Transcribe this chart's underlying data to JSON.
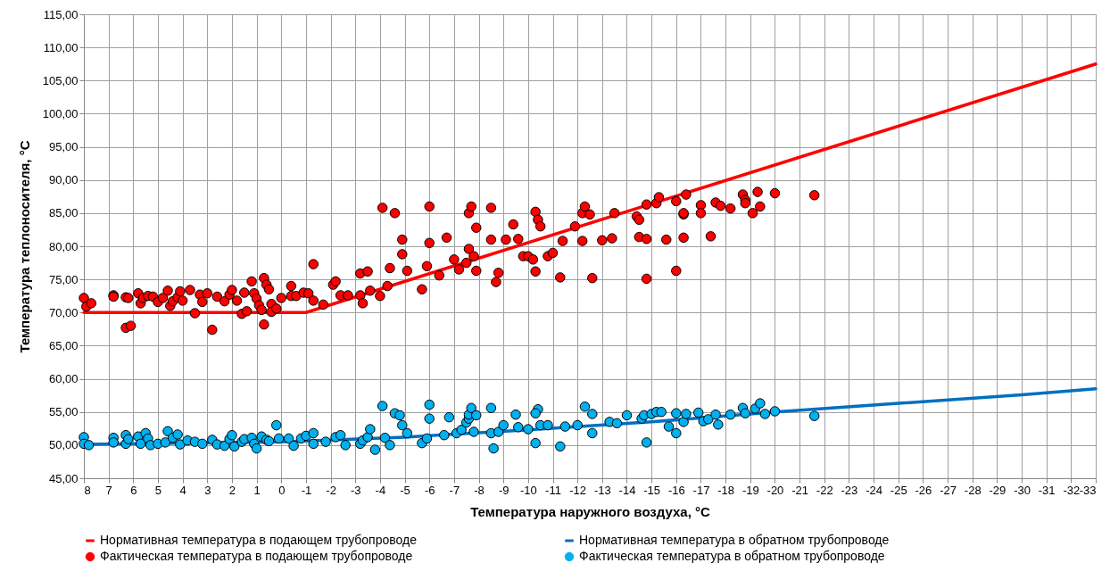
{
  "chart_data": {
    "type": "scatter",
    "xlabel": "Температура наружного воздуха,  °C",
    "ylabel": "Температура теплоносителя,  °C",
    "xlim": [
      8,
      -33
    ],
    "xticks": [
      8,
      7,
      6,
      5,
      4,
      3,
      2,
      1,
      0,
      -1,
      -2,
      -3,
      -4,
      -5,
      -6,
      -7,
      -8,
      -9,
      -10,
      -11,
      -12,
      -13,
      -14,
      -15,
      -16,
      -17,
      -18,
      -19,
      -20,
      -21,
      -22,
      -23,
      -24,
      -25,
      -26,
      -27,
      -28,
      -29,
      -30,
      -31,
      -32,
      -33
    ],
    "ylim": [
      45,
      115
    ],
    "yticks": [
      {
        "value": 45,
        "label": "45,00"
      },
      {
        "value": 50,
        "label": "50,00"
      },
      {
        "value": 55,
        "label": "55,00"
      },
      {
        "value": 60,
        "label": "60,00"
      },
      {
        "value": 65,
        "label": "65,00"
      },
      {
        "value": 70,
        "label": "70,00"
      },
      {
        "value": 75,
        "label": "75,00"
      },
      {
        "value": 80,
        "label": "80,00"
      },
      {
        "value": 85,
        "label": "85,00"
      },
      {
        "value": 90,
        "label": "90,00"
      },
      {
        "value": 95,
        "label": "95,00"
      },
      {
        "value": 100,
        "label": "100,00"
      },
      {
        "value": 105,
        "label": "105,00"
      },
      {
        "value": 110,
        "label": "110,00"
      },
      {
        "value": 115,
        "label": "115,00"
      }
    ],
    "grid": true,
    "legend": "bottom",
    "series": [
      {
        "name": "Нормативная температура в подающем трубопроводе",
        "type": "line",
        "color": "#ff0000",
        "x": [
          8,
          -1,
          -33
        ],
        "values": [
          70,
          70,
          107.5
        ]
      },
      {
        "name": "Нормативная температура в обратном трубопроводе",
        "type": "line",
        "color": "#0070c0",
        "x": [
          8,
          0,
          -5,
          -10,
          -15,
          -20,
          -25,
          -30,
          -33
        ],
        "values": [
          50.1,
          50.5,
          51.2,
          52.3,
          53.5,
          55,
          56.3,
          57.6,
          58.5
        ]
      },
      {
        "name": "Фактическая температура в подающем трубопроводе",
        "marker": "circle",
        "color": "#ff0000",
        "x": [
          8,
          7.9,
          7.7,
          6.8,
          6.8,
          6.3,
          6.3,
          6.1,
          6.2,
          5.8,
          5.7,
          5.6,
          5.4,
          5.2,
          5,
          4.8,
          4.6,
          4.5,
          4.4,
          4.2,
          4.1,
          4,
          3.7,
          3.5,
          3.3,
          3.2,
          3,
          2.8,
          2.6,
          2.3,
          2.1,
          2,
          1.8,
          1.6,
          1.4,
          1.5,
          1.2,
          1.1,
          1,
          0.9,
          0.8,
          0.7,
          0.7,
          0.6,
          0.5,
          0.4,
          0.4,
          0.2,
          0,
          -0.4,
          -0.4,
          -0.6,
          -0.9,
          -1.1,
          -1.3,
          -1.3,
          -1.7,
          -2.1,
          -2.2,
          -2.4,
          -2.7,
          -3.2,
          -3.3,
          -3.2,
          -3.5,
          -3.6,
          -4,
          -4.1,
          -4.3,
          -4.4,
          -4.6,
          -4.9,
          -4.9,
          -5.1,
          -5.7,
          -5.9,
          -6,
          -6,
          -6.4,
          -6.7,
          -7,
          -7.2,
          -7.5,
          -7.6,
          -7.7,
          -7.9,
          -7.6,
          -7.8,
          -7.9,
          -8.5,
          -8.5,
          -8.7,
          -8.8,
          -9.1,
          -9.4,
          -9.6,
          -9.8,
          -10,
          -10.2,
          -10.3,
          -10.3,
          -10.4,
          -10.5,
          -10.8,
          -11,
          -11.3,
          -11.4,
          -11.9,
          -12.2,
          -12.3,
          -12.2,
          -12.5,
          -12.6,
          -13,
          -13.4,
          -13.5,
          -14.4,
          -14.5,
          -14.5,
          -14.8,
          -14.8,
          -14.8,
          -15.2,
          -15.3,
          -15.6,
          -16,
          -16,
          -16.3,
          -16.3,
          -16.3,
          -16.4,
          -17,
          -17,
          -17.4,
          -17.6,
          -17.8,
          -18.2,
          -18.7,
          -18.8,
          -18.8,
          -19.1,
          -19.3,
          -19.4,
          -20,
          -21.6
        ],
        "values": [
          72.2,
          70.9,
          71.4,
          72.6,
          72.4,
          72.3,
          67.7,
          68,
          72.2,
          72.9,
          71.4,
          72.2,
          72.5,
          72.4,
          71.6,
          72.2,
          73.3,
          71,
          71.7,
          72.3,
          73.2,
          71.8,
          73.4,
          69.9,
          72.7,
          71.6,
          72.9,
          67.4,
          72.4,
          71.7,
          72.7,
          73.4,
          71.8,
          69.8,
          70.2,
          73,
          74.7,
          72.9,
          72.1,
          71.1,
          70.4,
          68.2,
          75.2,
          74.2,
          73.5,
          71.3,
          70.1,
          70.6,
          72.2,
          72.5,
          74,
          72.5,
          73,
          72.9,
          71.8,
          77.3,
          71.2,
          74.2,
          74.7,
          72.6,
          72.6,
          72.6,
          71.4,
          75.9,
          76.2,
          73.3,
          72.5,
          85.8,
          74,
          76.7,
          85,
          81,
          78.8,
          76.3,
          73.5,
          77,
          86,
          80.5,
          75.6,
          81.3,
          78,
          76.5,
          77.5,
          85,
          86,
          82.8,
          79.6,
          78.5,
          76.3,
          85.8,
          81,
          74.6,
          76,
          81,
          83.3,
          81.1,
          78.5,
          78.5,
          78,
          76.2,
          85.2,
          84,
          83,
          78.5,
          79,
          75.3,
          80.8,
          83,
          85,
          86,
          80.8,
          84.8,
          75.2,
          80.9,
          81.2,
          85,
          84.5,
          84,
          81.4,
          75.1,
          86.3,
          81.1,
          86.5,
          87.4,
          81,
          76.3,
          86.8,
          84.8,
          85,
          81.3,
          87.8,
          86.2,
          85,
          81.5,
          86.6,
          86.1,
          85.7,
          87.8,
          87,
          86.5,
          85,
          88.2,
          86,
          88,
          87.7
        ]
      },
      {
        "name": "Фактическая температура в обратном трубопроводе",
        "marker": "circle",
        "color": "#00b0f0",
        "x": [
          8,
          8,
          7.8,
          6.8,
          6.8,
          6.3,
          6.3,
          6.2,
          5.8,
          5.7,
          5.5,
          5.4,
          5.3,
          5,
          4.7,
          4.6,
          4.4,
          4.2,
          4.1,
          3.8,
          3.5,
          3.2,
          2.8,
          2.6,
          2.3,
          2.1,
          2,
          1.9,
          1.6,
          1.5,
          1.2,
          1.1,
          1,
          0.8,
          0.6,
          0.5,
          0.2,
          0.1,
          -0.3,
          -0.5,
          -0.8,
          -1,
          -1.3,
          -1.3,
          -1.8,
          -2.2,
          -2.4,
          -2.6,
          -3.2,
          -3.3,
          -3.5,
          -3.6,
          -3.8,
          -4.1,
          -4.2,
          -4.4,
          -4.6,
          -4.8,
          -4.9,
          -5.1,
          -5.7,
          -5.9,
          -6,
          -6,
          -6.6,
          -6.8,
          -7.1,
          -7.3,
          -7.5,
          -7.6,
          -7.6,
          -7.7,
          -7.8,
          -7.9,
          -8.5,
          -8.5,
          -8.6,
          -8.8,
          -9,
          -9.5,
          -9.6,
          -10,
          -10.3,
          -10.4,
          -10.3,
          -10.5,
          -10.8,
          -11.3,
          -11.5,
          -12,
          -12.3,
          -12.6,
          -12.6,
          -13.3,
          -13.6,
          -14,
          -14.6,
          -14.7,
          -14.8,
          -15,
          -15.2,
          -15.4,
          -15.7,
          -16,
          -16,
          -16.3,
          -16.4,
          -16.9,
          -17.1,
          -17.3,
          -17.6,
          -17.7,
          -18.2,
          -18.7,
          -18.8,
          -19.2,
          -19.4,
          -19.6,
          -20,
          -21.6
        ],
        "values": [
          51.2,
          50.2,
          50,
          51.1,
          50.4,
          51.5,
          50.2,
          50.9,
          51.3,
          50.2,
          51.8,
          51,
          50,
          50.2,
          50.4,
          52.1,
          51.1,
          51.6,
          50.1,
          50.7,
          50.5,
          50.2,
          50.8,
          50.1,
          49.9,
          50.9,
          51.5,
          49.8,
          50.5,
          50.9,
          51.1,
          50.2,
          49.5,
          51.3,
          50.8,
          50.6,
          53,
          51,
          51,
          49.9,
          51,
          51.4,
          51.8,
          50.2,
          50.5,
          51.2,
          51.5,
          50,
          50.2,
          50.7,
          51.2,
          52.4,
          49.3,
          55.9,
          51.1,
          50,
          54.8,
          54.5,
          53,
          51.8,
          50.3,
          51,
          56.1,
          54,
          51.5,
          54.2,
          51.8,
          52.3,
          53.4,
          54,
          54.6,
          55.6,
          52,
          54.5,
          55.6,
          51.8,
          49.5,
          52,
          53,
          54.6,
          52.7,
          52.4,
          50.3,
          55.4,
          54.8,
          53,
          53,
          49.8,
          52.8,
          53,
          55.8,
          54.7,
          51.8,
          53.5,
          53.3,
          54.5,
          54,
          54.5,
          50.4,
          54.7,
          55,
          55,
          52.8,
          51.8,
          54.8,
          53.5,
          54.7,
          54.9,
          53.6,
          53.9,
          54.6,
          53.1,
          54.6,
          55.6,
          54.8,
          55.5,
          56.3,
          54.7,
          55.1,
          54.4
        ]
      }
    ]
  }
}
